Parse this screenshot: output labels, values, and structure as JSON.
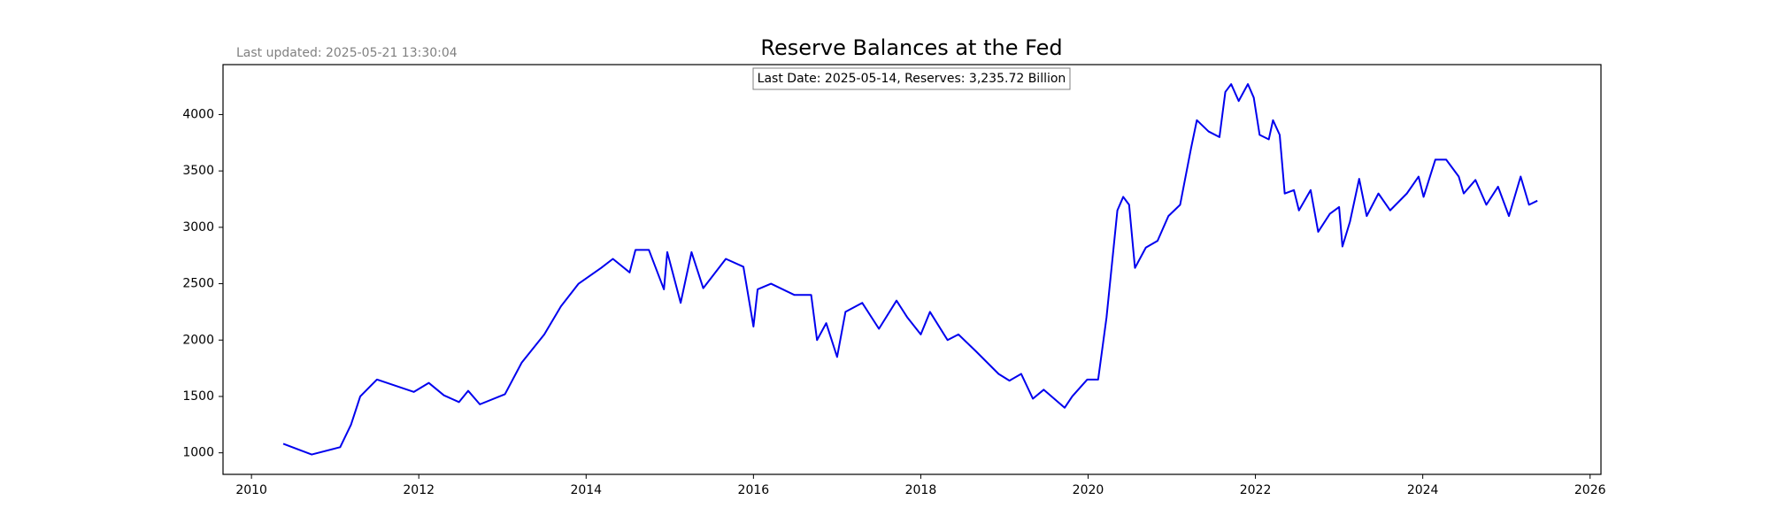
{
  "chart_data": {
    "type": "line",
    "title": "Reserve Balances at the Fed",
    "subtitle": "Last updated: 2025-05-21 13:30:04",
    "annotation": "Last Date: 2025-05-14, Reserves: 3,235.72 Billion",
    "x": [
      2010.38,
      2010.72,
      2011.06,
      2011.19,
      2011.3,
      2011.5,
      2011.94,
      2012.12,
      2012.3,
      2012.48,
      2012.59,
      2012.73,
      2013.03,
      2013.23,
      2013.5,
      2013.7,
      2013.91,
      2014.18,
      2014.32,
      2014.52,
      2014.59,
      2014.75,
      2014.93,
      2014.97,
      2015.13,
      2015.26,
      2015.4,
      2015.67,
      2015.88,
      2016.0,
      2016.05,
      2016.21,
      2016.49,
      2016.69,
      2016.76,
      2016.87,
      2017.0,
      2017.1,
      2017.3,
      2017.5,
      2017.71,
      2017.84,
      2018.0,
      2018.11,
      2018.32,
      2018.45,
      2018.66,
      2018.93,
      2019.06,
      2019.2,
      2019.34,
      2019.47,
      2019.72,
      2019.81,
      2019.99,
      2020.12,
      2020.22,
      2020.35,
      2020.42,
      2020.49,
      2020.56,
      2020.69,
      2020.83,
      2020.96,
      2021.1,
      2021.23,
      2021.3,
      2021.44,
      2021.57,
      2021.64,
      2021.71,
      2021.8,
      2021.91,
      2021.98,
      2022.05,
      2022.16,
      2022.21,
      2022.29,
      2022.35,
      2022.46,
      2022.52,
      2022.66,
      2022.75,
      2022.89,
      2023.0,
      2023.04,
      2023.13,
      2023.24,
      2023.33,
      2023.47,
      2023.61,
      2023.81,
      2023.95,
      2024.01,
      2024.15,
      2024.28,
      2024.43,
      2024.49,
      2024.63,
      2024.76,
      2024.9,
      2025.03,
      2025.17,
      2025.27,
      2025.37
    ],
    "series": [
      {
        "color": "#0000ee",
        "values": [
          1080,
          985,
          1050,
          1250,
          1500,
          1650,
          1540,
          1620,
          1510,
          1450,
          1550,
          1430,
          1520,
          1800,
          2050,
          2300,
          2500,
          2640,
          2720,
          2600,
          2800,
          2800,
          2450,
          2780,
          2330,
          2780,
          2460,
          2720,
          2650,
          2120,
          2450,
          2500,
          2400,
          2400,
          2000,
          2150,
          1850,
          2250,
          2330,
          2100,
          2350,
          2200,
          2050,
          2250,
          2000,
          2050,
          1900,
          1700,
          1640,
          1700,
          1480,
          1560,
          1400,
          1500,
          1650,
          1650,
          2200,
          3150,
          3270,
          3200,
          2640,
          2820,
          2880,
          3100,
          3200,
          3700,
          3950,
          3850,
          3800,
          4200,
          4270,
          4120,
          4270,
          4150,
          3820,
          3780,
          3950,
          3820,
          3300,
          3330,
          3150,
          3330,
          2960,
          3120,
          3180,
          2830,
          3050,
          3430,
          3100,
          3300,
          3150,
          3300,
          3450,
          3270,
          3600,
          3600,
          3450,
          3300,
          3420,
          3200,
          3360,
          3100,
          3450,
          3200,
          3235.72
        ]
      }
    ],
    "xlim": [
      2009.66,
      2026.13
    ],
    "xticks": [
      2010,
      2012,
      2014,
      2016,
      2018,
      2020,
      2022,
      2024,
      2026
    ],
    "ylim": [
      809,
      4443
    ],
    "yticks": [
      1000,
      1500,
      2000,
      2500,
      3000,
      3500,
      4000
    ],
    "grid": false
  }
}
